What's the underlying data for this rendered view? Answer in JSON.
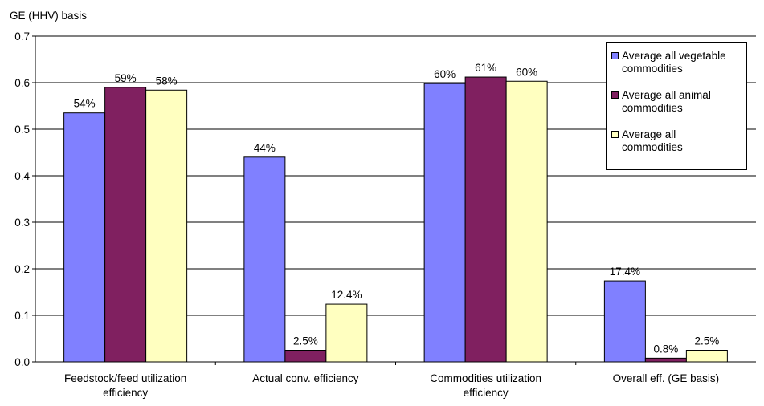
{
  "chart_data": {
    "type": "bar",
    "title": "",
    "ylabel": "GE (HHV) basis",
    "xlabel": "",
    "ylim": [
      0,
      0.7
    ],
    "yticks": [
      "0.0",
      "0.1",
      "0.2",
      "0.3",
      "0.4",
      "0.5",
      "0.6",
      "0.7"
    ],
    "categories": [
      [
        "Feedstock/feed utilization",
        "efficiency"
      ],
      [
        "Actual conv. efficiency"
      ],
      [
        "Commodities utilization",
        "efficiency"
      ],
      [
        "Overall eff. (GE basis)"
      ]
    ],
    "series": [
      {
        "name": [
          "Average all vegetable",
          "commodities"
        ],
        "color": "#8080ff",
        "values": [
          0.535,
          0.44,
          0.598,
          0.174
        ],
        "labels": [
          "54%",
          "44%",
          "60%",
          "17.4%"
        ]
      },
      {
        "name": [
          "Average all animal",
          "commodities"
        ],
        "color": "#802060",
        "values": [
          0.59,
          0.025,
          0.612,
          0.008
        ],
        "labels": [
          "59%",
          "2.5%",
          "61%",
          "0.8%"
        ]
      },
      {
        "name": [
          "Average all",
          "commodities"
        ],
        "color": "#ffffc0",
        "values": [
          0.584,
          0.124,
          0.603,
          0.025
        ],
        "labels": [
          "58%",
          "12.4%",
          "60%",
          "2.5%"
        ]
      }
    ],
    "grid": true,
    "legend": "top-right"
  }
}
